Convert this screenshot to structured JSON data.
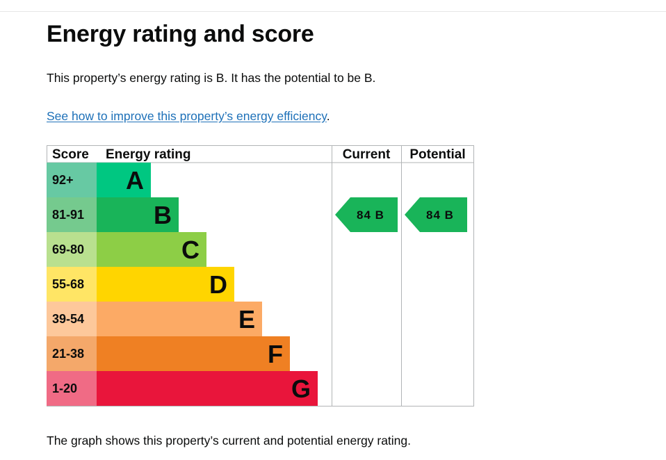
{
  "page": {
    "title": "Energy rating and score",
    "summary": "This property’s energy rating is B. It has the potential to be B.",
    "improve_link": "See how to improve this property’s energy efficiency",
    "improve_suffix": ".",
    "footer": "The graph shows this property’s current and potential energy rating."
  },
  "chart_data": {
    "type": "table",
    "headers": {
      "score": "Score",
      "rating": "Energy rating",
      "current": "Current",
      "potential": "Potential"
    },
    "bands": [
      {
        "score": "92+",
        "letter": "A",
        "color": "#00c781",
        "score_color": "#67c9a3",
        "letter_color": "#0b0c0c"
      },
      {
        "score": "81-91",
        "letter": "B",
        "color": "#19b459",
        "score_color": "#75ca8e",
        "letter_color": "#0b0c0c"
      },
      {
        "score": "69-80",
        "letter": "C",
        "color": "#8dce46",
        "score_color": "#b9e08f",
        "letter_color": "#0b0c0c"
      },
      {
        "score": "55-68",
        "letter": "D",
        "color": "#ffd500",
        "score_color": "#ffe565",
        "letter_color": "#0b0c0c"
      },
      {
        "score": "39-54",
        "letter": "E",
        "color": "#fcaa65",
        "score_color": "#fdc89b",
        "letter_color": "#0b0c0c"
      },
      {
        "score": "21-38",
        "letter": "F",
        "color": "#ef8023",
        "score_color": "#f4a86a",
        "letter_color": "#0b0c0c"
      },
      {
        "score": "1-20",
        "letter": "G",
        "color": "#e9153b",
        "score_color": "#f06b85",
        "letter_color": "#0b0c0c"
      }
    ],
    "current": {
      "score": 84,
      "letter": "B",
      "label": "84 B",
      "band": "B",
      "color": "#19b459"
    },
    "potential": {
      "score": 84,
      "letter": "B",
      "label": "84 B",
      "band": "B",
      "color": "#19b459"
    }
  }
}
